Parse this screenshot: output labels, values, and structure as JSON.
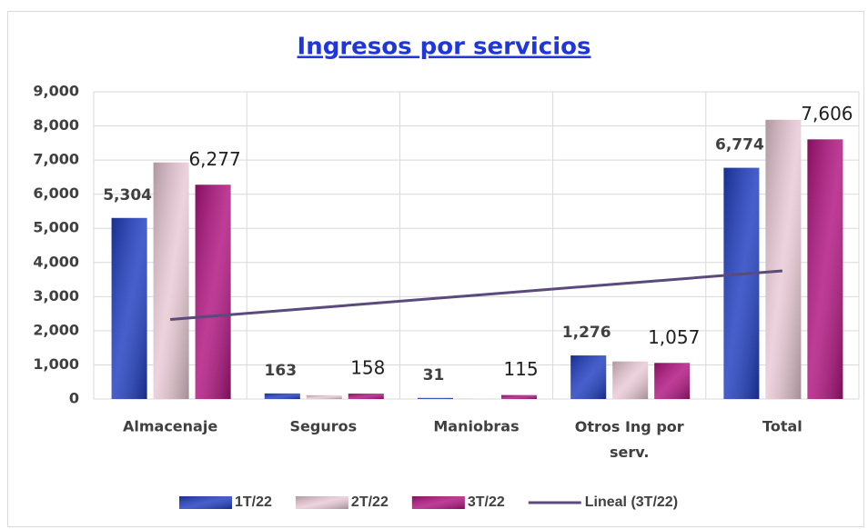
{
  "chart_data": {
    "type": "bar",
    "title": "Ingresos por servicios",
    "categories": [
      "Almacenaje",
      "Seguros",
      "Maniobras",
      "Otros Ing por serv.",
      "Total"
    ],
    "series": [
      {
        "name": "1T/22",
        "color": "#1e3cc0",
        "values": [
          5304,
          163,
          31,
          1276,
          6774
        ],
        "value_labels": [
          "5,304",
          "163",
          "31",
          "1,276",
          "6,774"
        ]
      },
      {
        "name": "2T/22",
        "color": "#e9c9d5",
        "values": [
          6930,
          110,
          10,
          1100,
          8180
        ]
      },
      {
        "name": "3T/22",
        "color": "#b0127f",
        "values": [
          6277,
          158,
          115,
          1057,
          7606
        ],
        "value_labels": [
          "6,277",
          "158",
          "115",
          "1,057",
          "7,606"
        ]
      }
    ],
    "trendline": {
      "series": 2,
      "name": "Lineal (3T/22)",
      "color": "#5b4a7c"
    },
    "ylim": [
      0,
      9000
    ],
    "yticks": [
      0,
      {
        "value": 1000,
        "label": "1,000"
      },
      {
        "value": 2000,
        "label": "2,000"
      },
      {
        "value": 3000,
        "label": "3,000"
      },
      {
        "value": 4000,
        "label": "4,000"
      },
      {
        "value": 5000,
        "label": "5,000"
      },
      {
        "value": 6000,
        "label": "6,000"
      },
      {
        "value": 7000,
        "label": "7,000"
      },
      {
        "value": 8000,
        "label": "8,000"
      },
      {
        "value": 9000,
        "label": "9,000"
      }
    ],
    "grid": true,
    "legend": "bottom"
  }
}
